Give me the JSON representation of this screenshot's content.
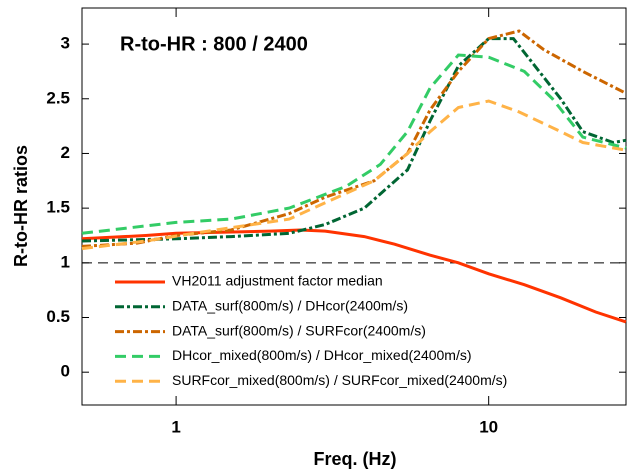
{
  "chart_data": {
    "type": "line",
    "annotation": "R-to-HR : 800 / 2400",
    "xlabel": "Freq. (Hz)",
    "ylabel": "R-to-HR ratios",
    "xscale": "log",
    "xlim": [
      0.5,
      27.5
    ],
    "xticks": [
      1,
      10
    ],
    "ylim": [
      -0.3,
      3.33
    ],
    "yticks": [
      0,
      0.5,
      1,
      1.5,
      2,
      2.5,
      3
    ],
    "reference_line": {
      "y": 1,
      "color": "#000000"
    },
    "legend": "lower left",
    "series": [
      {
        "name": "VH2011 adjustment factor median",
        "color": "#ff3300",
        "linestyle": "solid",
        "x": [
          0.5,
          0.8,
          1,
          2,
          2.5,
          3,
          4,
          5,
          6.5,
          8,
          10,
          13,
          17,
          22,
          27.5
        ],
        "values": [
          1.22,
          1.25,
          1.27,
          1.29,
          1.3,
          1.29,
          1.24,
          1.17,
          1.07,
          1.0,
          0.9,
          0.8,
          0.68,
          0.55,
          0.46
        ]
      },
      {
        "name": "DATA_surf(800m/s) / DHcor(2400m/s)",
        "color": "#006633",
        "linestyle": "dashdot",
        "x": [
          0.5,
          1,
          1.5,
          2.3,
          3,
          4,
          5.5,
          6.5,
          8,
          10,
          12,
          17,
          20,
          25,
          27.5
        ],
        "values": [
          1.2,
          1.22,
          1.24,
          1.27,
          1.35,
          1.5,
          1.85,
          2.3,
          2.8,
          3.05,
          3.05,
          2.5,
          2.2,
          2.1,
          2.12
        ]
      },
      {
        "name": "DATA_surf(800m/s) / SURFcor(2400m/s)",
        "color": "#cc6600",
        "linestyle": "dashdot",
        "x": [
          0.5,
          0.75,
          1,
          1.5,
          2.3,
          3,
          4.3,
          5.5,
          6.5,
          8,
          10,
          12.5,
          15,
          20,
          27.5
        ],
        "values": [
          1.15,
          1.18,
          1.25,
          1.3,
          1.45,
          1.6,
          1.75,
          2.0,
          2.4,
          2.75,
          3.05,
          3.12,
          2.95,
          2.75,
          2.55
        ]
      },
      {
        "name": "DHcor_mixed(800m/s) / DHcor_mixed(2400m/s)",
        "color": "#33cc66",
        "linestyle": "dashed",
        "x": [
          0.5,
          1,
          1.5,
          2.3,
          3.5,
          4.5,
          5.5,
          6.5,
          8,
          10,
          13,
          16,
          20,
          27.5
        ],
        "values": [
          1.27,
          1.37,
          1.4,
          1.5,
          1.7,
          1.9,
          2.2,
          2.6,
          2.9,
          2.88,
          2.75,
          2.5,
          2.15,
          2.05
        ]
      },
      {
        "name": "SURFcor_mixed(800m/s) / SURFcor_mixed(2400m/s)",
        "color": "#ffb347",
        "linestyle": "dashed",
        "x": [
          0.5,
          0.8,
          1.2,
          2.3,
          3,
          4.3,
          5.5,
          6.5,
          8,
          10,
          12.5,
          17,
          20,
          27.5
        ],
        "values": [
          1.13,
          1.2,
          1.28,
          1.4,
          1.55,
          1.75,
          2.0,
          2.2,
          2.42,
          2.48,
          2.38,
          2.2,
          2.1,
          2.03
        ]
      }
    ]
  }
}
